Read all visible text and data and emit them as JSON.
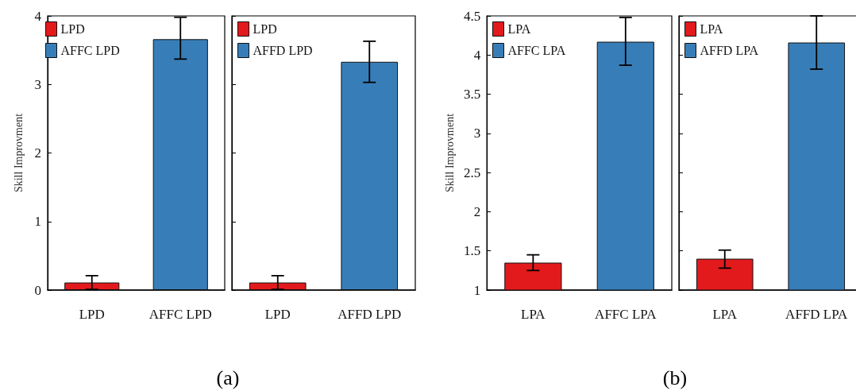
{
  "chart_data": [
    {
      "type": "bar",
      "ylabel": "Skill Improvment",
      "categories": [
        "LPD",
        "AFFC LPD"
      ],
      "ylim": [
        0,
        4
      ],
      "yticks": [
        0,
        1,
        2,
        3,
        4
      ],
      "legend": "top left",
      "annotations": [
        "(a)"
      ],
      "series": [
        {
          "name": "LPD",
          "color": "#e31a1c",
          "values": [
            0.11,
            null
          ],
          "errors": [
            [
              0.01,
              0.21
            ],
            null
          ]
        },
        {
          "name": "AFFC LPD",
          "color": "#377eb8",
          "values": [
            null,
            3.66
          ],
          "errors": [
            null,
            [
              3.37,
              3.98
            ]
          ]
        }
      ]
    },
    {
      "type": "bar",
      "categories": [
        "LPD",
        "AFFD LPD"
      ],
      "ylim": [
        0,
        4
      ],
      "yticks": [
        0,
        1,
        2,
        3,
        4
      ],
      "legend": "top left",
      "tick_labels": "x",
      "series": [
        {
          "name": "LPD",
          "color": "#e31a1c",
          "values": [
            0.11,
            null
          ],
          "errors": [
            [
              0.01,
              0.21
            ],
            null
          ]
        },
        {
          "name": "AFFD LPD",
          "color": "#377eb8",
          "values": [
            null,
            3.33
          ],
          "errors": [
            null,
            [
              3.03,
              3.63
            ]
          ]
        }
      ]
    },
    {
      "type": "bar",
      "ylabel": "Skill Improvment",
      "categories": [
        "LPA",
        "AFFC LPA"
      ],
      "ylim": [
        1,
        4.5
      ],
      "yticks": [
        1,
        1.5,
        2,
        2.5,
        3,
        3.5,
        4,
        4.5
      ],
      "legend": "top left",
      "annotations": [
        "(b)"
      ],
      "series": [
        {
          "name": "LPA",
          "color": "#e31a1c",
          "values": [
            1.35,
            null
          ],
          "errors": [
            [
              1.25,
              1.45
            ],
            null
          ]
        },
        {
          "name": "AFFC LPA",
          "color": "#377eb8",
          "values": [
            null,
            4.17
          ],
          "errors": [
            null,
            [
              3.87,
              4.48
            ]
          ]
        }
      ]
    },
    {
      "type": "bar",
      "categories": [
        "LPA",
        "AFFD LPA"
      ],
      "ylim": [
        1,
        4.5
      ],
      "yticks": [
        1,
        1.5,
        2,
        2.5,
        3,
        3.5,
        4,
        4.5
      ],
      "legend": "top left",
      "tick_labels": "x",
      "series": [
        {
          "name": "LPA",
          "color": "#e31a1c",
          "values": [
            1.4,
            null
          ],
          "errors": [
            [
              1.28,
              1.51
            ],
            null
          ]
        },
        {
          "name": "AFFD LPA",
          "color": "#377eb8",
          "values": [
            null,
            4.16
          ],
          "errors": [
            null,
            [
              3.82,
              4.5
            ]
          ]
        }
      ]
    }
  ]
}
